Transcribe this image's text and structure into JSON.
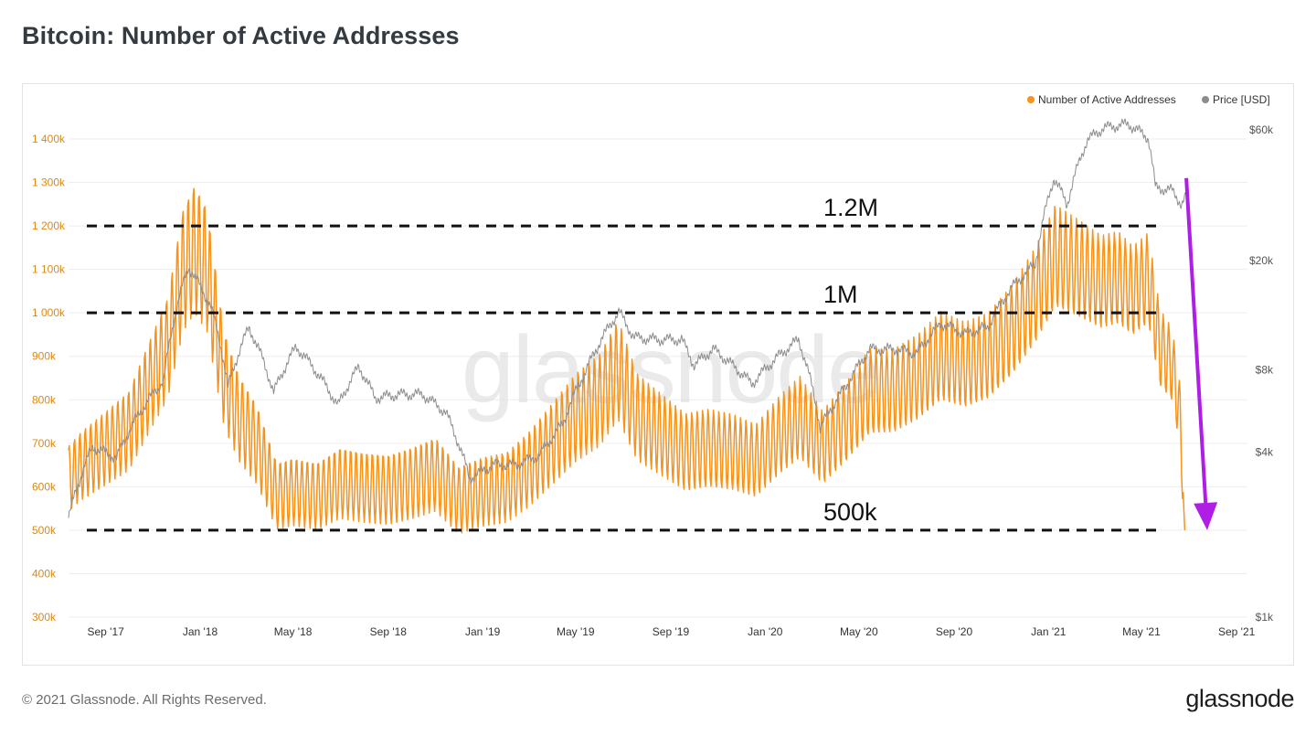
{
  "header": {
    "title": "Bitcoin: Number of Active Addresses"
  },
  "footer": {
    "copyright": "© 2021 Glassnode. All Rights Reserved.",
    "logo": "glassnode"
  },
  "colors": {
    "addresses": "#f7931a",
    "price": "#8c8c8c",
    "arrow": "#b01ee6",
    "reference": "#111111"
  },
  "chart_data": {
    "type": "line",
    "title": "Bitcoin: Number of Active Addresses",
    "watermark": "glassnode",
    "grid": true,
    "legend_position": "top-right",
    "x_ticks": [
      "Sep '17",
      "Jan '18",
      "May '18",
      "Sep '18",
      "Jan '19",
      "May '19",
      "Sep '19",
      "Jan '20",
      "May '20",
      "Sep '20",
      "Jan '21",
      "May '21",
      "Sep '21"
    ],
    "x_range": [
      "2017-07-15",
      "2021-09-15"
    ],
    "y_left": {
      "ticks": [
        "300k",
        "400k",
        "500k",
        "600k",
        "700k",
        "800k",
        "900k",
        "1 000k",
        "1 100k",
        "1 200k",
        "1 300k",
        "1 400k"
      ],
      "range": [
        300000,
        1400000
      ]
    },
    "y_right": {
      "ticks": [
        "$1k",
        "$4k",
        "$8k",
        "$20k",
        "$60k"
      ],
      "scale": "log"
    },
    "series": [
      {
        "name": "Number of Active Addresses",
        "axis": "left",
        "data": [
          [
            "2017-07-15",
            620000
          ],
          [
            "2017-08-01",
            650000
          ],
          [
            "2017-09-01",
            690000
          ],
          [
            "2017-10-01",
            730000
          ],
          [
            "2017-11-01",
            850000
          ],
          [
            "2017-11-20",
            920000
          ],
          [
            "2017-12-10",
            1100000
          ],
          [
            "2017-12-25",
            1150000
          ],
          [
            "2018-01-10",
            1100000
          ],
          [
            "2018-02-01",
            850000
          ],
          [
            "2018-02-20",
            760000
          ],
          [
            "2018-03-15",
            700000
          ],
          [
            "2018-04-10",
            580000
          ],
          [
            "2018-05-01",
            590000
          ],
          [
            "2018-06-01",
            580000
          ],
          [
            "2018-07-01",
            610000
          ],
          [
            "2018-08-01",
            600000
          ],
          [
            "2018-09-01",
            595000
          ],
          [
            "2018-10-01",
            610000
          ],
          [
            "2018-11-01",
            630000
          ],
          [
            "2018-12-01",
            570000
          ],
          [
            "2019-01-01",
            590000
          ],
          [
            "2019-02-01",
            600000
          ],
          [
            "2019-03-01",
            640000
          ],
          [
            "2019-04-01",
            700000
          ],
          [
            "2019-05-01",
            760000
          ],
          [
            "2019-06-01",
            800000
          ],
          [
            "2019-06-25",
            870000
          ],
          [
            "2019-07-20",
            760000
          ],
          [
            "2019-08-20",
            720000
          ],
          [
            "2019-09-20",
            680000
          ],
          [
            "2019-10-20",
            690000
          ],
          [
            "2019-11-20",
            680000
          ],
          [
            "2019-12-20",
            660000
          ],
          [
            "2020-01-20",
            720000
          ],
          [
            "2020-02-15",
            760000
          ],
          [
            "2020-03-15",
            690000
          ],
          [
            "2020-04-15",
            750000
          ],
          [
            "2020-05-15",
            820000
          ],
          [
            "2020-06-15",
            820000
          ],
          [
            "2020-07-15",
            850000
          ],
          [
            "2020-08-15",
            900000
          ],
          [
            "2020-09-15",
            880000
          ],
          [
            "2020-10-15",
            900000
          ],
          [
            "2020-11-15",
            960000
          ],
          [
            "2020-12-15",
            1040000
          ],
          [
            "2021-01-10",
            1130000
          ],
          [
            "2021-02-10",
            1100000
          ],
          [
            "2021-03-10",
            1070000
          ],
          [
            "2021-04-01",
            1080000
          ],
          [
            "2021-04-20",
            1050000
          ],
          [
            "2021-05-10",
            1080000
          ],
          [
            "2021-05-25",
            920000
          ],
          [
            "2021-06-10",
            880000
          ],
          [
            "2021-06-20",
            760000
          ],
          [
            "2021-06-26",
            500000
          ]
        ]
      },
      {
        "name": "Price [USD]",
        "axis": "right",
        "data": [
          [
            "2017-07-15",
            2300
          ],
          [
            "2017-08-15",
            4200
          ],
          [
            "2017-09-15",
            3800
          ],
          [
            "2017-10-15",
            5600
          ],
          [
            "2017-11-15",
            7300
          ],
          [
            "2017-12-17",
            19000
          ],
          [
            "2018-01-15",
            13500
          ],
          [
            "2018-02-06",
            6900
          ],
          [
            "2018-03-05",
            11400
          ],
          [
            "2018-04-06",
            6600
          ],
          [
            "2018-05-05",
            9700
          ],
          [
            "2018-06-28",
            5900
          ],
          [
            "2018-07-25",
            8200
          ],
          [
            "2018-08-15",
            6300
          ],
          [
            "2018-09-15",
            6500
          ],
          [
            "2018-10-15",
            6500
          ],
          [
            "2018-11-14",
            5600
          ],
          [
            "2018-12-15",
            3200
          ],
          [
            "2019-01-15",
            3600
          ],
          [
            "2019-02-15",
            3600
          ],
          [
            "2019-03-15",
            3900
          ],
          [
            "2019-04-15",
            5100
          ],
          [
            "2019-05-15",
            8000
          ],
          [
            "2019-06-26",
            13000
          ],
          [
            "2019-07-15",
            10500
          ],
          [
            "2019-08-15",
            10300
          ],
          [
            "2019-09-15",
            10300
          ],
          [
            "2019-10-01",
            8300
          ],
          [
            "2019-10-26",
            9500
          ],
          [
            "2019-12-15",
            7100
          ],
          [
            "2020-01-15",
            8800
          ],
          [
            "2020-02-13",
            10300
          ],
          [
            "2020-03-12",
            4900
          ],
          [
            "2020-04-15",
            7000
          ],
          [
            "2020-05-15",
            9500
          ],
          [
            "2020-06-15",
            9500
          ],
          [
            "2020-07-15",
            9200
          ],
          [
            "2020-08-15",
            11800
          ],
          [
            "2020-09-15",
            10800
          ],
          [
            "2020-10-15",
            11500
          ],
          [
            "2020-11-15",
            16000
          ],
          [
            "2020-12-15",
            19500
          ],
          [
            "2021-01-08",
            40000
          ],
          [
            "2021-01-25",
            32000
          ],
          [
            "2021-02-20",
            55000
          ],
          [
            "2021-03-13",
            61000
          ],
          [
            "2021-04-14",
            63000
          ],
          [
            "2021-05-10",
            56000
          ],
          [
            "2021-05-19",
            37000
          ],
          [
            "2021-06-10",
            36000
          ],
          [
            "2021-06-22",
            32000
          ],
          [
            "2021-06-28",
            34500
          ]
        ]
      }
    ],
    "annotations": [
      {
        "type": "hline",
        "y": 1200000,
        "label": "1.2M"
      },
      {
        "type": "hline",
        "y": 1000000,
        "label": "1M"
      },
      {
        "type": "hline",
        "y": 500000,
        "label": "500k"
      },
      {
        "type": "arrow",
        "from": [
          "2021-06-28",
          1310000
        ],
        "to": [
          "2021-07-25",
          500000
        ]
      }
    ]
  }
}
